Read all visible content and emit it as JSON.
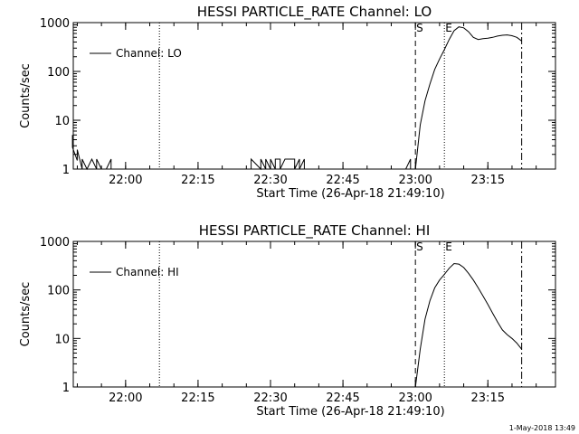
{
  "footer_timestamp": "1-May-2018 13:49",
  "chart_data": [
    {
      "type": "line",
      "title": "HESSI PARTICLE_RATE Channel: LO",
      "xlabel": "Start Time (26-Apr-18 21:49:10)",
      "ylabel": "Counts/sec",
      "y_scale": "log",
      "ylim": [
        1,
        1000
      ],
      "x_ticks": [
        "22:00",
        "22:15",
        "22:30",
        "22:45",
        "23:00",
        "23:15"
      ],
      "y_ticks": [
        "1",
        "10",
        "100",
        "1000"
      ],
      "legend": "Channel: LO",
      "legend_position": "top-left",
      "markers": [
        {
          "time": "22:07",
          "style": "dotted",
          "label": ""
        },
        {
          "time": "23:00",
          "style": "dashed",
          "label": "S"
        },
        {
          "time": "23:06",
          "style": "dotted",
          "label": "E"
        },
        {
          "time": "23:22",
          "style": "dash-dot",
          "label": ""
        }
      ],
      "series": [
        {
          "name": "Channel: LO",
          "x": [
            "21:49",
            "21:49",
            "21:50",
            "21:50",
            "21:51",
            "21:51",
            "21:52",
            "21:53",
            "21:54",
            "21:54",
            "21:55",
            "21:56",
            "21:57",
            "21:57",
            "21:58",
            "22:26",
            "22:26",
            "22:28",
            "22:28",
            "22:29",
            "22:29",
            "22:30",
            "22:30",
            "22:31",
            "22:31",
            "22:32",
            "22:32",
            "22:33",
            "22:34",
            "22:35",
            "22:35",
            "22:36",
            "22:36",
            "22:37",
            "22:37",
            "22:58",
            "22:59",
            "22:59",
            "23:00",
            "23:01",
            "23:02",
            "23:03",
            "23:04",
            "23:05",
            "23:06",
            "23:07",
            "23:08",
            "23:09",
            "23:10",
            "23:11",
            "23:12",
            "23:13",
            "23:14",
            "23:15",
            "23:16",
            "23:17",
            "23:18",
            "23:19",
            "23:20",
            "23:21",
            "23:22"
          ],
          "y": [
            5,
            2.8,
            1.5,
            2.5,
            1,
            1.6,
            1,
            1.6,
            1,
            1.6,
            1,
            1,
            1.6,
            1,
            1,
            1,
            1.6,
            1,
            1.6,
            1,
            1.6,
            1,
            1.6,
            1,
            1.6,
            1.6,
            1,
            1.6,
            1.6,
            1.6,
            1,
            1.6,
            1,
            1.6,
            1,
            1,
            1.6,
            1,
            1,
            8,
            25,
            55,
            110,
            180,
            280,
            450,
            680,
            820,
            780,
            650,
            500,
            450,
            470,
            480,
            500,
            530,
            550,
            560,
            540,
            500,
            420
          ]
        }
      ]
    },
    {
      "type": "line",
      "title": "HESSI PARTICLE_RATE Channel: HI",
      "xlabel": "Start Time (26-Apr-18 21:49:10)",
      "ylabel": "Counts/sec",
      "y_scale": "log",
      "ylim": [
        1,
        1000
      ],
      "x_ticks": [
        "22:00",
        "22:15",
        "22:30",
        "22:45",
        "23:00",
        "23:15"
      ],
      "y_ticks": [
        "1",
        "10",
        "100",
        "1000"
      ],
      "legend": "Channel: HI",
      "legend_position": "top-left",
      "markers": [
        {
          "time": "22:07",
          "style": "dotted",
          "label": ""
        },
        {
          "time": "23:00",
          "style": "dashed",
          "label": "S"
        },
        {
          "time": "23:06",
          "style": "dotted",
          "label": "E"
        },
        {
          "time": "23:22",
          "style": "dash-dot",
          "label": ""
        }
      ],
      "series": [
        {
          "name": "Channel: HI",
          "x": [
            "23:00",
            "23:01",
            "23:02",
            "23:03",
            "23:04",
            "23:05",
            "23:06",
            "23:07",
            "23:08",
            "23:09",
            "23:10",
            "23:11",
            "23:12",
            "23:13",
            "23:14",
            "23:15",
            "23:16",
            "23:17",
            "23:18",
            "23:19",
            "23:20",
            "23:21",
            "23:22"
          ],
          "y": [
            1,
            6,
            25,
            60,
            110,
            160,
            210,
            280,
            350,
            340,
            290,
            220,
            160,
            110,
            75,
            50,
            33,
            22,
            15,
            12,
            10,
            8,
            6
          ]
        }
      ]
    }
  ]
}
